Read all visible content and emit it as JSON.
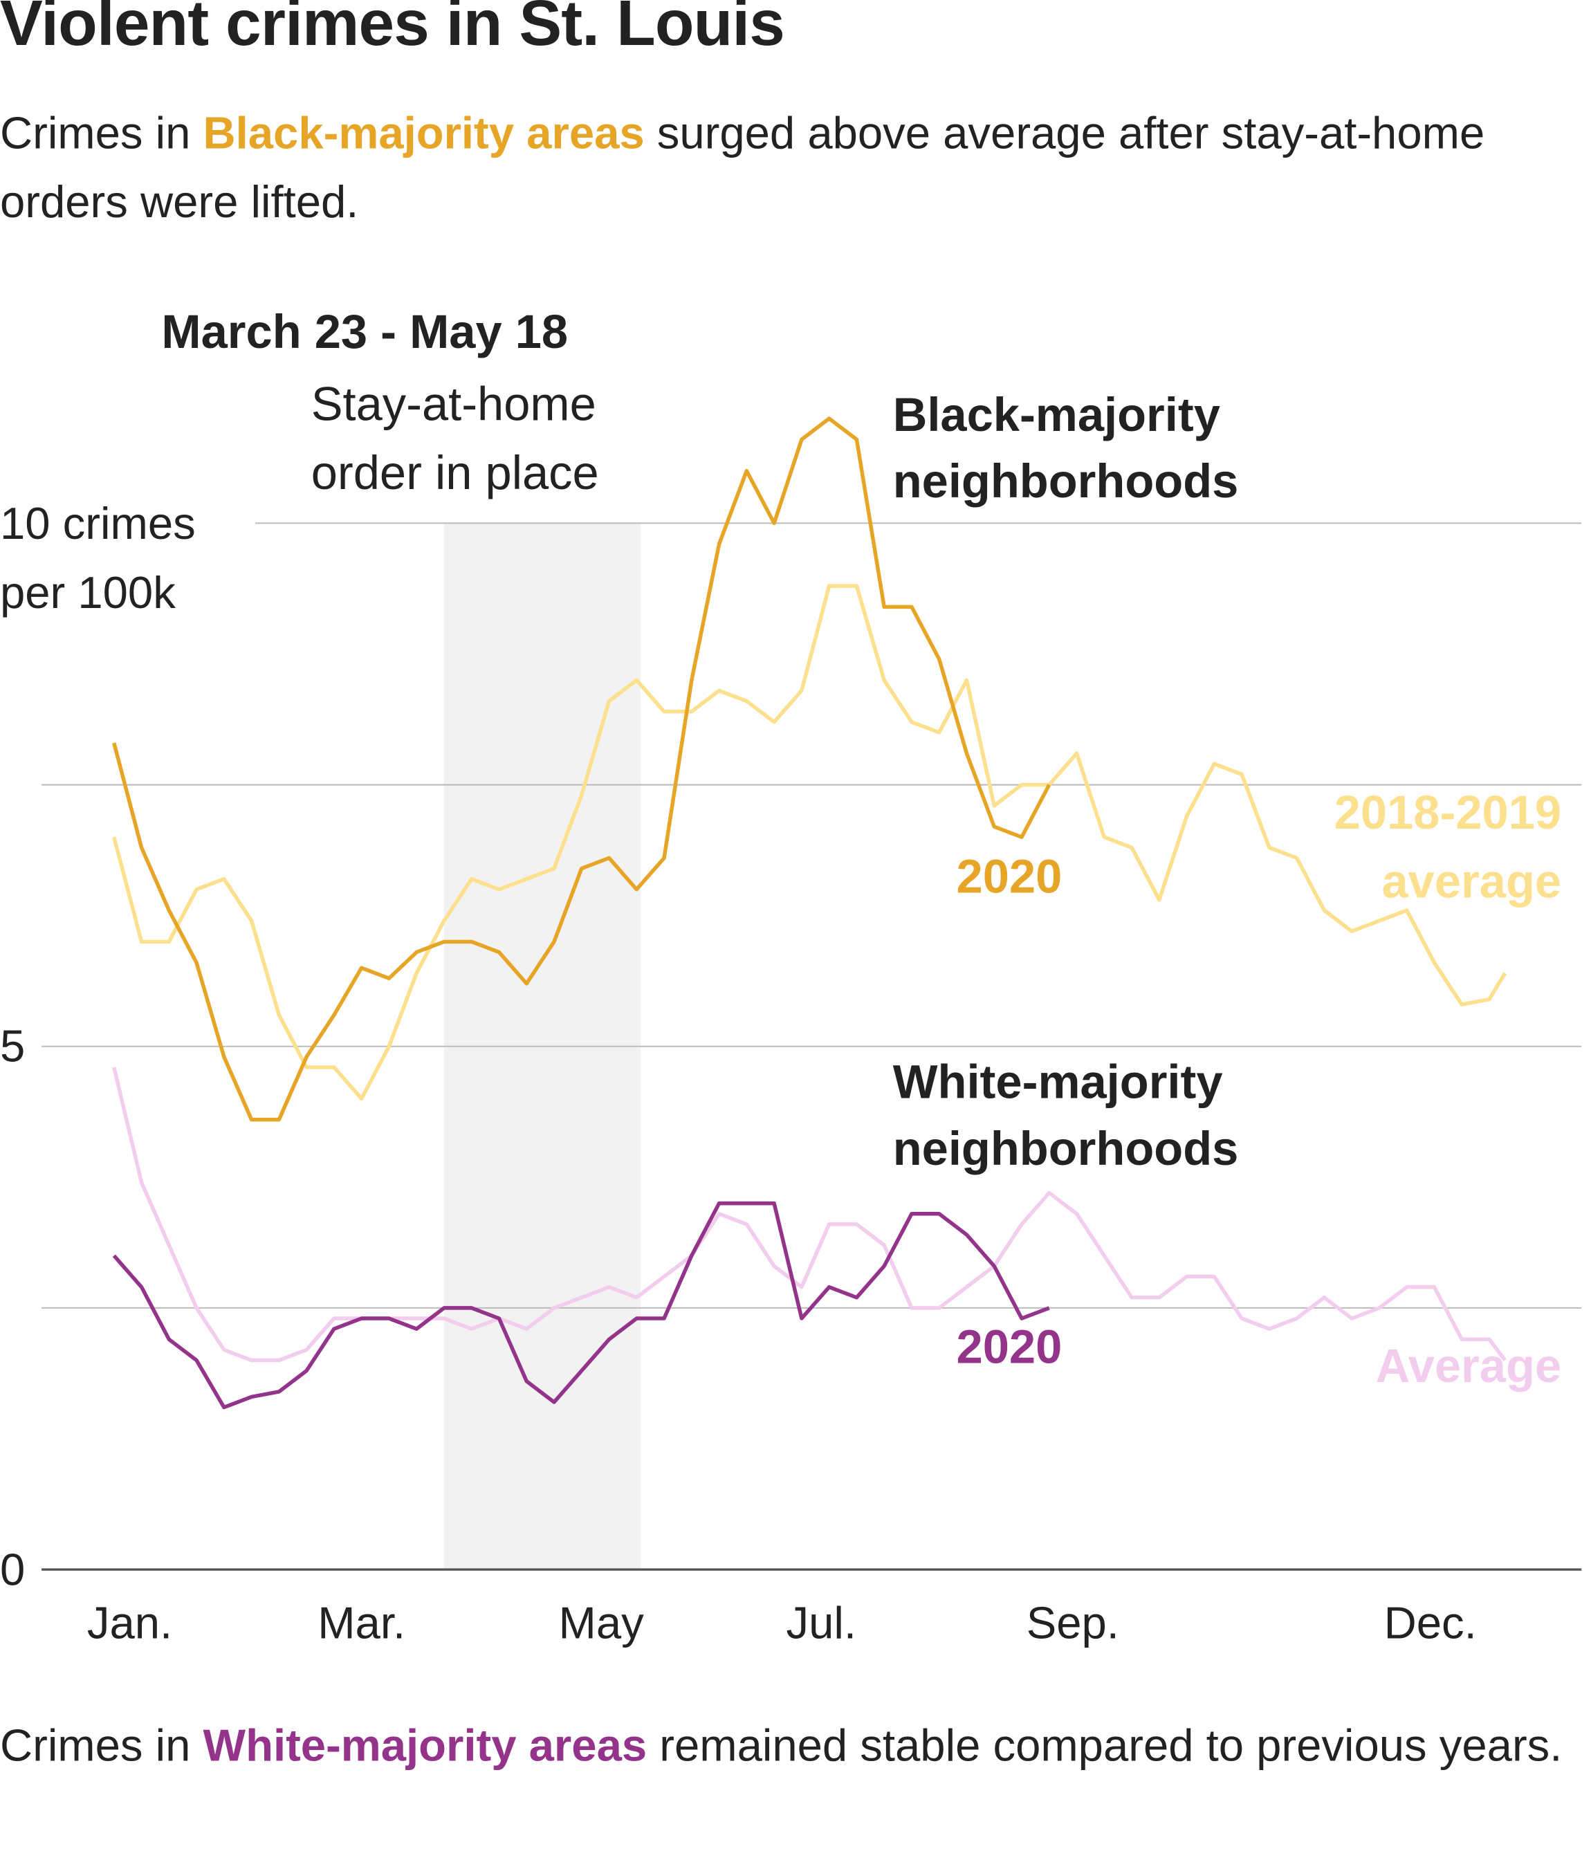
{
  "chart_data": {
    "type": "line",
    "title": "Violent crimes in St. Louis",
    "subtitle": [
      {
        "text": "Crimes in "
      },
      {
        "text": "Black-majority areas",
        "color": "#e6a526"
      },
      {
        "text": " surged above average after stay-at-home orders were lifted."
      }
    ],
    "footnote": [
      {
        "text": "Crimes in "
      },
      {
        "text": "White-majority areas",
        "color": "#93338a"
      },
      {
        "text": " remained stable compared to previous years."
      }
    ],
    "annotation": {
      "title": "March 23 - May 18",
      "text": "Stay-at-home order in place",
      "x_range": [
        84,
        134
      ]
    },
    "groups": [
      "Black-majority neighborhoods",
      "White-majority neighborhoods"
    ],
    "x": [
      0,
      7,
      14,
      21,
      28,
      35,
      42,
      49,
      56,
      63,
      70,
      77,
      84,
      91,
      98,
      105,
      112,
      119,
      126,
      133,
      140,
      147,
      154,
      161,
      168,
      175,
      182,
      189,
      196,
      203,
      210,
      217,
      224,
      231,
      238,
      245,
      252,
      259,
      266,
      273,
      280,
      287,
      294,
      301,
      308,
      315,
      322,
      329,
      336,
      343,
      350,
      354
    ],
    "xlim": [
      0,
      365
    ],
    "xticks": [
      {
        "value": 4,
        "label": "Jan."
      },
      {
        "value": 63,
        "label": "Mar."
      },
      {
        "value": 124,
        "label": "May"
      },
      {
        "value": 180,
        "label": "Jul."
      },
      {
        "value": 244,
        "label": "Sep."
      },
      {
        "value": 335,
        "label": "Dec."
      }
    ],
    "ylim": [
      0,
      12
    ],
    "yticks": [
      0,
      5,
      {
        "value": 10,
        "label": "10 crimes per 100k"
      }
    ],
    "minor_yticks": [
      2.5,
      7.5
    ],
    "grid": true,
    "series": [
      {
        "name": "2018-2019 average",
        "color": "#fde08e",
        "values": [
          7.0,
          6.0,
          6.0,
          6.5,
          6.6,
          6.2,
          5.3,
          4.8,
          4.8,
          4.5,
          5.0,
          5.7,
          6.2,
          6.6,
          6.5,
          6.6,
          6.7,
          7.4,
          8.3,
          8.5,
          8.2,
          8.2,
          8.4,
          8.3,
          8.1,
          8.4,
          9.4,
          9.4,
          8.5,
          8.1,
          8.0,
          8.5,
          7.3,
          7.5,
          7.5,
          7.8,
          7.0,
          6.9,
          6.4,
          7.2,
          7.7,
          7.6,
          6.9,
          6.8,
          6.3,
          6.1,
          6.2,
          6.3,
          5.8,
          5.4,
          5.45,
          5.7
        ]
      },
      {
        "name": "2020",
        "color": "#e6a526",
        "values": [
          7.9,
          6.9,
          6.3,
          5.8,
          4.9,
          4.3,
          4.3,
          4.9,
          5.3,
          5.75,
          5.65,
          5.9,
          6.0,
          6.0,
          5.9,
          5.6,
          6.0,
          6.7,
          6.8,
          6.5,
          6.8,
          8.5,
          9.8,
          10.5,
          10.0,
          10.8,
          11.0,
          10.8,
          9.2,
          9.2,
          8.7,
          7.8,
          7.1,
          7.0,
          7.5,
          null,
          null,
          null,
          null,
          null,
          null,
          null,
          null,
          null,
          null,
          null,
          null,
          null,
          null,
          null,
          null,
          null
        ]
      },
      {
        "name": "Average",
        "color": "#f3cdee",
        "values": [
          4.8,
          3.7,
          3.1,
          2.5,
          2.1,
          2.0,
          2.0,
          2.1,
          2.4,
          2.4,
          2.4,
          2.4,
          2.4,
          2.3,
          2.4,
          2.3,
          2.5,
          2.6,
          2.7,
          2.6,
          2.8,
          3.0,
          3.4,
          3.3,
          2.9,
          2.7,
          3.3,
          3.3,
          3.1,
          2.5,
          2.5,
          2.7,
          2.9,
          3.3,
          3.6,
          3.4,
          3.0,
          2.6,
          2.6,
          2.8,
          2.8,
          2.4,
          2.3,
          2.4,
          2.6,
          2.4,
          2.5,
          2.7,
          2.7,
          2.2,
          2.2,
          2.0
        ]
      },
      {
        "name": "2020",
        "color": "#93338a",
        "values": [
          3.0,
          2.7,
          2.2,
          2.0,
          1.55,
          1.65,
          1.7,
          1.9,
          2.3,
          2.4,
          2.4,
          2.3,
          2.5,
          2.5,
          2.4,
          1.8,
          1.6,
          1.9,
          2.2,
          2.4,
          2.4,
          3.0,
          3.5,
          3.5,
          3.5,
          2.4,
          2.7,
          2.6,
          2.9,
          3.4,
          3.4,
          3.2,
          2.9,
          2.4,
          2.5,
          null,
          null,
          null,
          null,
          null,
          null,
          null,
          null,
          null,
          null,
          null,
          null,
          null,
          null,
          null,
          null,
          null
        ]
      }
    ]
  }
}
